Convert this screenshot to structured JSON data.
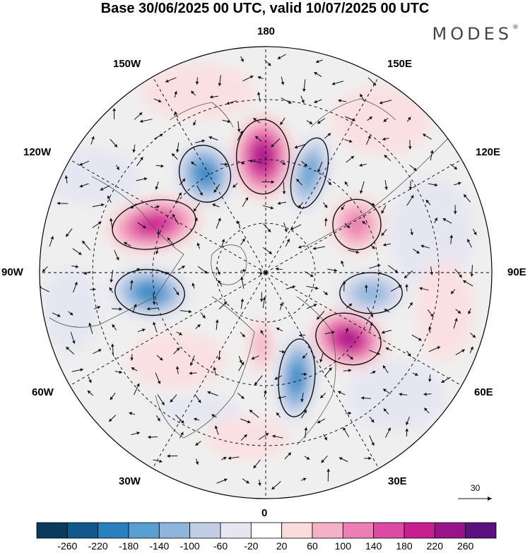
{
  "title": "Base 30/06/2025 00 UTC, valid 10/07/2025 00 UTC",
  "brand": "MODES",
  "brand_mark": "®",
  "longitude_labels": {
    "top": "180",
    "bottom": "0",
    "left": "90W",
    "right": "90E",
    "w150": "150W",
    "e150": "150E",
    "w120": "120W",
    "e120": "120E",
    "w60": "60W",
    "e60": "60E",
    "w30": "30W",
    "e30": "30E"
  },
  "reference_vector": "30",
  "colorbar": {
    "colors": [
      "#0a3a5c",
      "#10588e",
      "#2a80bf",
      "#5a9fd2",
      "#8eb5dc",
      "#c2cde6",
      "#e6e6f2",
      "#ffffff",
      "#fadcdd",
      "#f5b2c6",
      "#ec7fb4",
      "#dc4aa3",
      "#c81f8e",
      "#99128a",
      "#5b1080"
    ],
    "labels": [
      "-260",
      "-220",
      "-180",
      "-140",
      "-100",
      "-60",
      "-20",
      "20",
      "60",
      "100",
      "140",
      "180",
      "220",
      "260"
    ]
  },
  "anomaly_centers": [
    {
      "name": "positive-center-180",
      "sign": "positive",
      "level": 260
    },
    {
      "name": "negative-center-150w",
      "sign": "negative",
      "level": -220
    },
    {
      "name": "negative-center-165e",
      "sign": "negative",
      "level": -180
    },
    {
      "name": "positive-center-120w",
      "sign": "positive",
      "level": 220
    },
    {
      "name": "negative-center-90w",
      "sign": "negative",
      "level": -220
    },
    {
      "name": "positive-center-135e",
      "sign": "positive",
      "level": 140
    },
    {
      "name": "negative-center-90e",
      "sign": "negative",
      "level": -140
    },
    {
      "name": "positive-center-60e",
      "sign": "positive",
      "level": 260
    },
    {
      "name": "negative-center-15e",
      "sign": "negative",
      "level": -220
    },
    {
      "name": "positive-center-0",
      "sign": "positive",
      "level": 100
    }
  ]
}
